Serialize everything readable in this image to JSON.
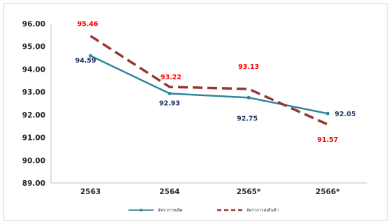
{
  "chart_data": {
    "type": "line",
    "categories": [
      "2563",
      "2564",
      "2565*",
      "2566*"
    ],
    "ylim": [
      89,
      96
    ],
    "yticks": [
      "89.00",
      "90.00",
      "91.00",
      "92.00",
      "93.00",
      "94.00",
      "95.00",
      "96.00"
    ],
    "series": [
      {
        "name": "อัตราการผลิต",
        "values": [
          94.59,
          92.93,
          92.75,
          92.05
        ],
        "labels": [
          "94.59",
          "92.93",
          "92.75",
          "92.05"
        ],
        "color": "#31859c",
        "style": "solid",
        "label_color": "#1f3864"
      },
      {
        "name": "อัตราการส่งสินค้า",
        "values": [
          95.46,
          93.22,
          93.13,
          91.57
        ],
        "labels": [
          "95.46",
          "93.22",
          "93.13",
          "91.57"
        ],
        "color": "#963634",
        "style": "dashed",
        "label_color": "#ff0000"
      }
    ],
    "grid": false,
    "legend": "bottom"
  }
}
